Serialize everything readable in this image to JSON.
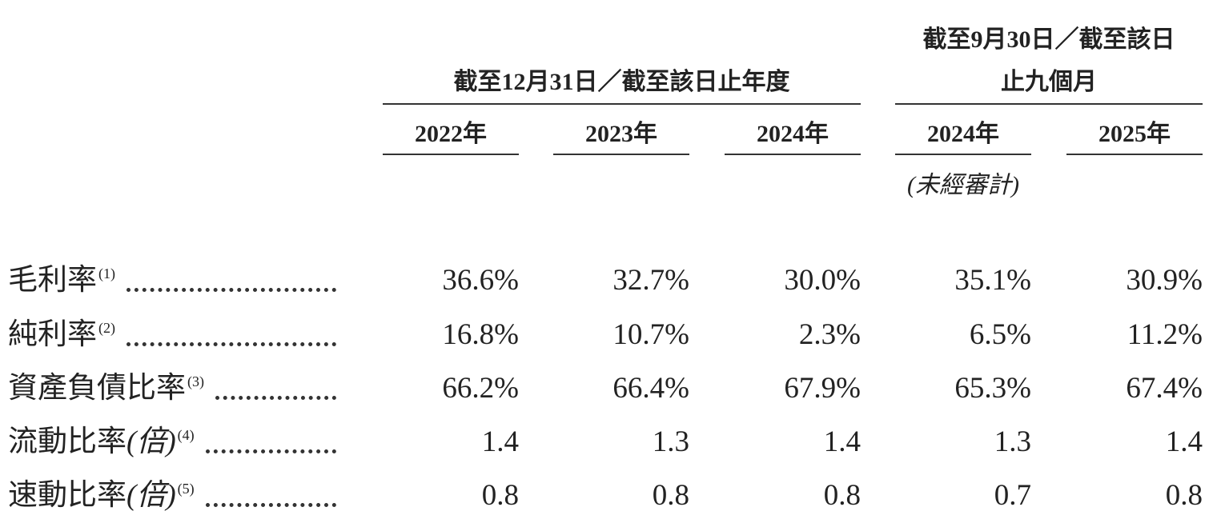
{
  "header": {
    "groups": [
      {
        "lines": [
          "截至12月31日／截至該日止年度"
        ]
      },
      {
        "lines": [
          "截至9月30日／截至該日",
          "止九個月"
        ]
      }
    ],
    "columns": [
      "2022年",
      "2023年",
      "2024年",
      "2024年",
      "2025年"
    ],
    "column_note": {
      "column": 3,
      "text": "(未經審計)"
    }
  },
  "table": {
    "rows": [
      {
        "label": "毛利率",
        "unit": null,
        "note": "(1)",
        "values": [
          "36.6%",
          "32.7%",
          "30.0%",
          "35.1%",
          "30.9%"
        ]
      },
      {
        "label": "純利率",
        "unit": null,
        "note": "(2)",
        "values": [
          "16.8%",
          "10.7%",
          "2.3%",
          "6.5%",
          "11.2%"
        ]
      },
      {
        "label": "資產負債比率",
        "unit": null,
        "note": "(3)",
        "values": [
          "66.2%",
          "66.4%",
          "67.9%",
          "65.3%",
          "67.4%"
        ]
      },
      {
        "label": "流動比率",
        "unit": "(倍)",
        "note": "(4)",
        "values": [
          "1.4",
          "1.3",
          "1.4",
          "1.3",
          "1.4"
        ]
      },
      {
        "label": "速動比率",
        "unit": "(倍)",
        "note": "(5)",
        "values": [
          "0.8",
          "0.8",
          "0.8",
          "0.7",
          "0.8"
        ]
      }
    ]
  }
}
